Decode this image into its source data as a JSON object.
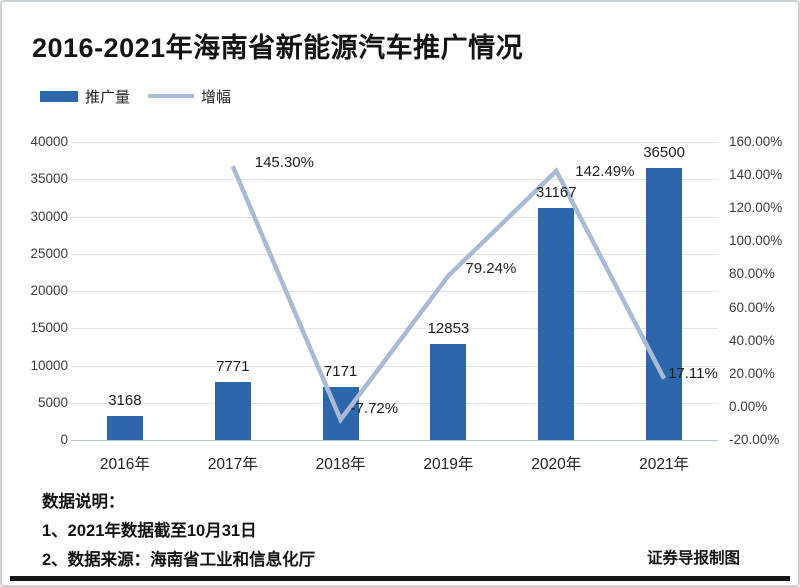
{
  "title": "2016-2021年海南省新能源汽车推广情况",
  "notes": {
    "heading": "数据说明：",
    "items": [
      "1、2021年数据截至10月31日",
      "2、数据来源：海南省工业和信息化厅"
    ],
    "credit": "证券导报制图"
  },
  "colors": {
    "bar": "#2c67ab",
    "line": "#a8bad6",
    "grid": "#e0e5ea",
    "baseline": "#b4c3d2"
  },
  "chart_data": {
    "type": "bar",
    "categories": [
      "2016年",
      "2017年",
      "2018年",
      "2019年",
      "2020年",
      "2021年"
    ],
    "series": [
      {
        "name": "推广量",
        "type": "bar",
        "axis": "left",
        "color": "#2c67ab",
        "values": [
          3168,
          7771,
          7171,
          12853,
          31167,
          36500
        ],
        "labels": [
          "3168",
          "7771",
          "7171",
          "12853",
          "31167",
          "36500"
        ]
      },
      {
        "name": "增幅",
        "type": "line",
        "axis": "right",
        "color": "#a8bad6",
        "values": [
          null,
          145.3,
          -7.72,
          79.24,
          142.49,
          17.11
        ],
        "labels": [
          null,
          "145.30%",
          "-7.72%",
          "79.24%",
          "142.49%",
          "17.11%"
        ]
      }
    ],
    "left_axis": {
      "min": 0,
      "max": 40000,
      "step": 5000,
      "ticks": [
        "40000",
        "35000",
        "30000",
        "25000",
        "20000",
        "15000",
        "10000",
        "5000",
        "0"
      ]
    },
    "right_axis": {
      "min": -20,
      "max": 160,
      "step": 20,
      "ticks": [
        "160.00%",
        "140.00%",
        "120.00%",
        "100.00%",
        "80.00%",
        "60.00%",
        "40.00%",
        "20.00%",
        "0.00%",
        "-20.00%"
      ]
    },
    "grid": true,
    "legend_position": "top-left"
  }
}
